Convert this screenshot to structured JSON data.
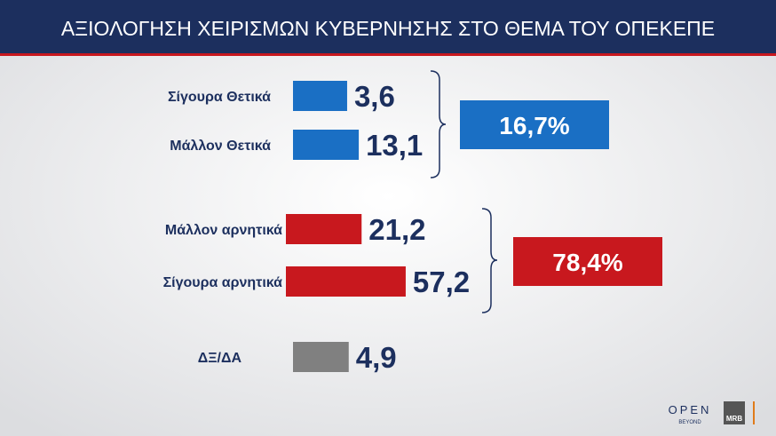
{
  "chart_data": {
    "type": "bar",
    "title": "ΑΞΙΟΛΟΓΗΣΗ ΧΕΙΡΙΣΜΩΝ ΚΥΒΕΡΝΗΣΗΣ ΣΤΟ ΘΕΜΑ ΤΟΥ ΟΠΕΚΕΠΕ",
    "categories": [
      "Σίγουρα Θετικά",
      "Μάλλον Θετικά",
      "Μάλλον αρνητικά",
      "Σίγουρα αρνητικά",
      "ΔΞ/ΔΑ"
    ],
    "values": [
      3.6,
      13.1,
      21.2,
      57.2,
      4.9
    ],
    "value_labels": [
      "3,6",
      "13,1",
      "21,2",
      "57,2",
      "4,9"
    ],
    "colors": [
      "#1a6fc4",
      "#1a6fc4",
      "#c8181e",
      "#c8181e",
      "#808080"
    ],
    "groups": [
      {
        "value": 16.7,
        "label": "16,7%",
        "color": "#1a6fc4"
      },
      {
        "value": 78.4,
        "label": "78,4%",
        "color": "#c8181e"
      }
    ],
    "logos": [
      "OPEN",
      "BEYOND",
      "MRB"
    ]
  }
}
